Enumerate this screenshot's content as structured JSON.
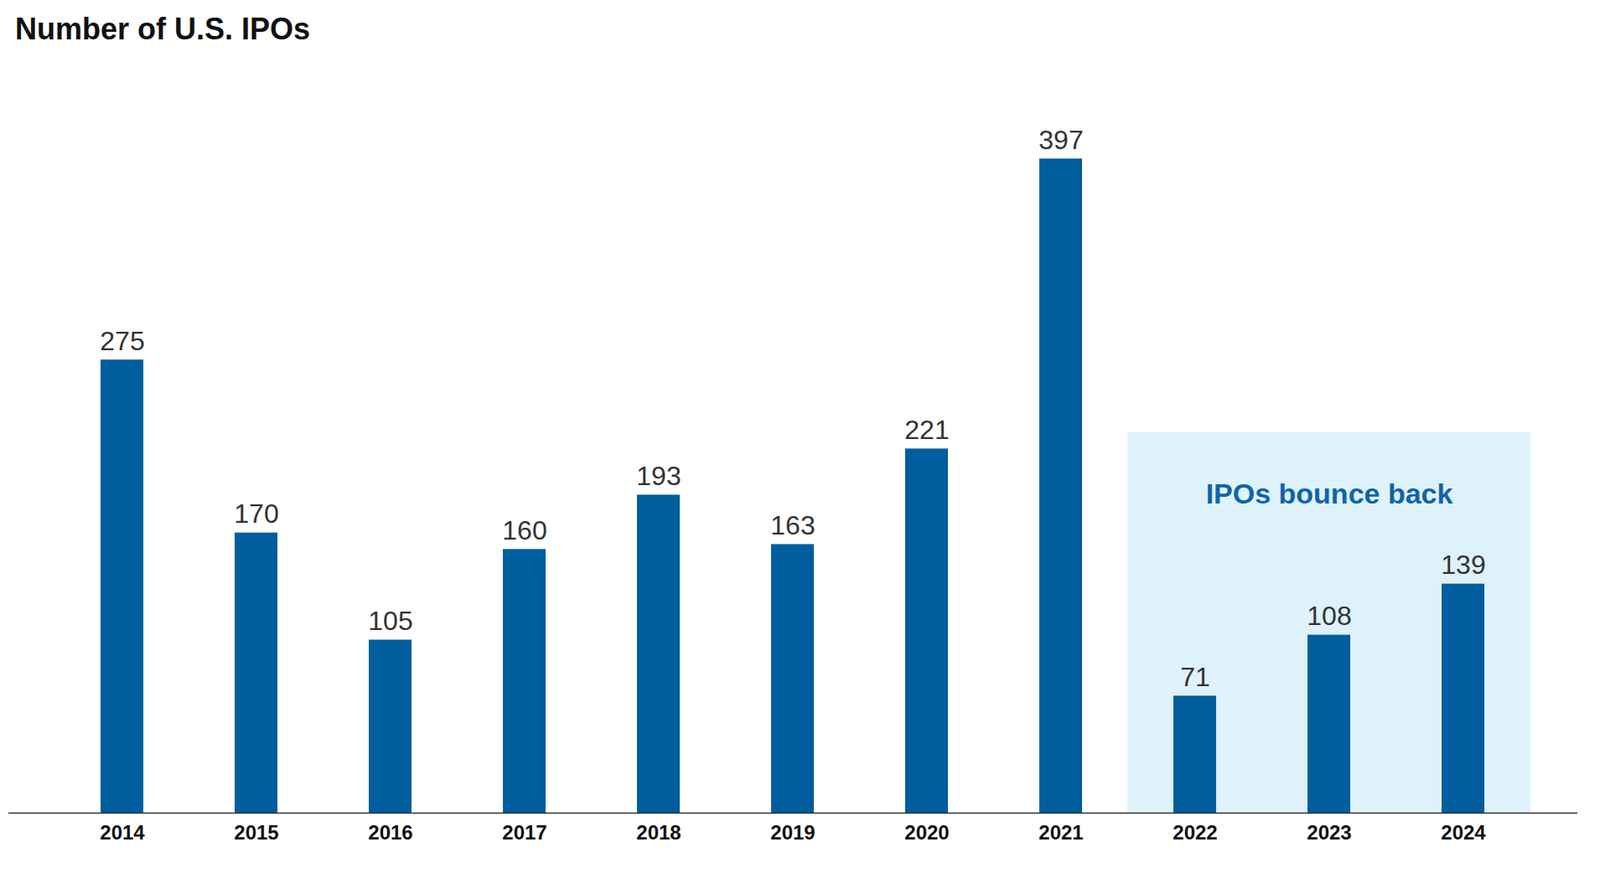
{
  "chart_data": {
    "type": "bar",
    "title": "Number of U.S. IPOs",
    "categories": [
      "2014",
      "2015",
      "2016",
      "2017",
      "2018",
      "2019",
      "2020",
      "2021",
      "2022",
      "2023",
      "2024"
    ],
    "values": [
      275,
      170,
      105,
      160,
      193,
      163,
      221,
      397,
      71,
      108,
      139
    ],
    "color": "#005e9e",
    "ylim": [
      0,
      450
    ],
    "tick_labels": "x",
    "data_labels": true,
    "grid": false,
    "annotations": [
      {
        "text": "IPOs bounce back",
        "from": "2022",
        "to": "2024",
        "color": "#def2fc"
      }
    ]
  }
}
